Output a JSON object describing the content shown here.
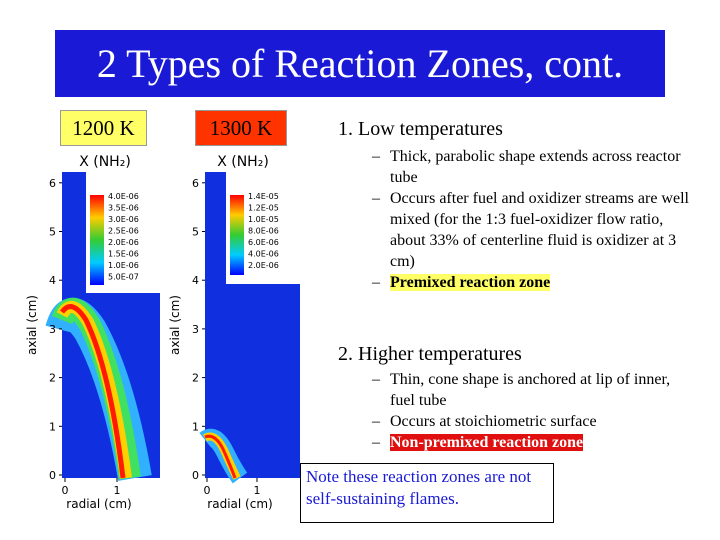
{
  "title": "2 Types of Reaction Zones, cont.",
  "plots": [
    {
      "temperature": "1200 K",
      "plot_title": "X (NH₂)",
      "y_label": "axial (cm)",
      "x_label": "radial (cm)",
      "yticks": [
        "0",
        "1",
        "2",
        "3",
        "4",
        "5",
        "6"
      ],
      "xticks": [
        "0",
        "1"
      ],
      "colorbar": [
        "4.0E-06",
        "3.5E-06",
        "3.0E-06",
        "2.5E-06",
        "2.0E-06",
        "1.5E-06",
        "1.0E-06",
        "5.0E-07"
      ]
    },
    {
      "temperature": "1300 K",
      "plot_title": "X (NH₂)",
      "y_label": "axial (cm)",
      "x_label": "radial (cm)",
      "yticks": [
        "0",
        "1",
        "2",
        "3",
        "4",
        "5",
        "6"
      ],
      "xticks": [
        "0",
        "1"
      ],
      "colorbar": [
        "1.4E-05",
        "1.2E-05",
        "1.0E-05",
        "8.0E-06",
        "6.0E-06",
        "4.0E-06",
        "2.0E-06"
      ]
    }
  ],
  "sections": [
    {
      "heading": "1. Low temperatures",
      "items": [
        "Thick, parabolic shape extends across reactor tube",
        "Occurs after fuel and oxidizer streams are well mixed (for the 1:3 fuel-oxidizer flow ratio, about 33% of centerline fluid is oxidizer at 3 cm)",
        "Premixed reaction zone"
      ]
    },
    {
      "heading": "2. Higher temperatures",
      "items": [
        "Thin, cone shape is anchored at lip of inner, fuel tube",
        "Occurs at stoichiometric surface",
        "Non-premixed reaction zone"
      ]
    }
  ],
  "note": "Note these reaction zones are not self-sustaining flames."
}
